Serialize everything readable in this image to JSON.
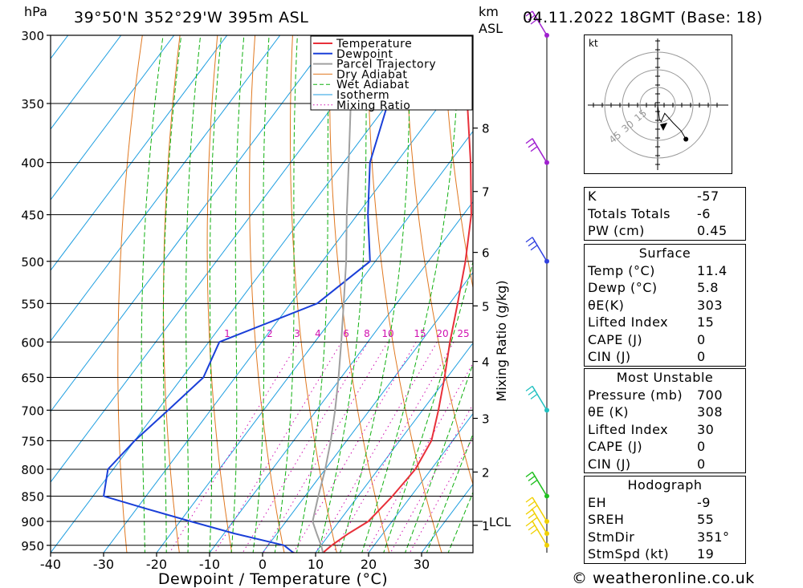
{
  "header": {
    "location": "39°50'N  352°29'W  395m  ASL",
    "datetime": "04.11.2022  18GMT  (Base: 18)",
    "hpa_label": "hPa",
    "km_label": "km",
    "asl_label": "ASL"
  },
  "legend": [
    "Temperature",
    "Dewpoint",
    "Parcel Trajectory",
    "Dry Adiabat",
    "Wet Adiabat",
    "Isotherm",
    "Mixing Ratio"
  ],
  "colors": {
    "temperature": "#e8303a",
    "dewpoint": "#1a3fd8",
    "parcel": "#a0a0a0",
    "dry_adiabat": "#e07820",
    "wet_adiabat": "#10b010",
    "isotherm": "#1e9ee0",
    "mixing_ratio": "#d010b0"
  },
  "chart_data": {
    "type": "skew-t log-p",
    "xlabel": "Dewpoint / Temperature (°C)",
    "ylabel_left": "hPa",
    "ylabel_right": "Mixing Ratio (g/kg)",
    "pressure_ticks": [
      300,
      350,
      400,
      450,
      500,
      550,
      600,
      650,
      700,
      750,
      800,
      850,
      900,
      950
    ],
    "temp_ticks": [
      -40,
      -30,
      -20,
      -10,
      0,
      10,
      20,
      30
    ],
    "km_ticks": [
      {
        "label": "8",
        "p": 370
      },
      {
        "label": "7",
        "p": 427
      },
      {
        "label": "6",
        "p": 490
      },
      {
        "label": "5",
        "p": 553
      },
      {
        "label": "4",
        "p": 627
      },
      {
        "label": "3",
        "p": 713
      },
      {
        "label": "2",
        "p": 805
      },
      {
        "label": "1",
        "p": 908
      }
    ],
    "lcl_label": "LCL",
    "lcl_p": 900,
    "mixing_ratio_labels": [
      "1",
      "2",
      "3",
      "4",
      "6",
      "8",
      "10",
      "15",
      "20",
      "25"
    ],
    "series": [
      {
        "name": "Temperature",
        "points": [
          [
            966,
            11.4
          ],
          [
            950,
            12
          ],
          [
            925,
            13.5
          ],
          [
            900,
            15.5
          ],
          [
            875,
            16
          ],
          [
            850,
            16.5
          ],
          [
            800,
            17
          ],
          [
            750,
            16
          ],
          [
            700,
            13
          ],
          [
            650,
            9.5
          ],
          [
            600,
            5.5
          ],
          [
            550,
            1.5
          ],
          [
            500,
            -3
          ],
          [
            450,
            -8.5
          ],
          [
            400,
            -16
          ],
          [
            350,
            -25
          ],
          [
            300,
            -34
          ]
        ]
      },
      {
        "name": "Dewpoint",
        "points": [
          [
            966,
            5.8
          ],
          [
            950,
            3
          ],
          [
            925,
            -8
          ],
          [
            900,
            -18
          ],
          [
            875,
            -28
          ],
          [
            850,
            -38
          ],
          [
            800,
            -41
          ],
          [
            750,
            -40
          ],
          [
            700,
            -38
          ],
          [
            650,
            -36
          ],
          [
            600,
            -38
          ],
          [
            550,
            -25
          ],
          [
            500,
            -21
          ],
          [
            450,
            -28
          ],
          [
            400,
            -35
          ],
          [
            350,
            -40
          ],
          [
            300,
            -50
          ]
        ]
      },
      {
        "name": "Parcel Trajectory",
        "points": [
          [
            966,
            11.4
          ],
          [
            950,
            10
          ],
          [
            925,
            7.5
          ],
          [
            900,
            5
          ],
          [
            850,
            2.5
          ],
          [
            800,
            0
          ],
          [
            750,
            -3
          ],
          [
            700,
            -6.5
          ],
          [
            650,
            -10.5
          ],
          [
            600,
            -15
          ],
          [
            550,
            -20
          ],
          [
            500,
            -25.5
          ],
          [
            450,
            -32
          ],
          [
            400,
            -39
          ],
          [
            350,
            -47
          ],
          [
            300,
            -56
          ]
        ]
      }
    ]
  },
  "wind_barbs": [
    {
      "p": 950,
      "color": "#f0d000"
    },
    {
      "p": 925,
      "color": "#f0d000"
    },
    {
      "p": 900,
      "color": "#f0d000"
    },
    {
      "p": 850,
      "color": "#20c020"
    },
    {
      "p": 700,
      "color": "#20c0c0"
    },
    {
      "p": 500,
      "color": "#3040e0"
    },
    {
      "p": 400,
      "color": "#a020d0"
    },
    {
      "p": 300,
      "color": "#a020d0"
    }
  ],
  "hodograph": {
    "unit": "kt",
    "ring_labels": [
      "15",
      "30",
      "45"
    ],
    "path": [
      [
        0,
        0
      ],
      [
        1.5,
        12
      ],
      [
        3,
        14
      ],
      [
        6,
        7
      ],
      [
        13,
        15
      ],
      [
        20,
        22
      ],
      [
        24,
        29
      ]
    ]
  },
  "indices": [
    {
      "label": "K",
      "value": "-57"
    },
    {
      "label": "Totals Totals",
      "value": "-6"
    },
    {
      "label": "PW (cm)",
      "value": "0.45"
    }
  ],
  "surface": {
    "title": "Surface",
    "rows": [
      {
        "label": "Temp (°C)",
        "value": "11.4"
      },
      {
        "label": "Dewp (°C)",
        "value": "5.8"
      },
      {
        "label": "θE(K)",
        "value": "303"
      },
      {
        "label": "Lifted Index",
        "value": "15"
      },
      {
        "label": "CAPE (J)",
        "value": "0"
      },
      {
        "label": "CIN (J)",
        "value": "0"
      }
    ]
  },
  "most_unstable": {
    "title": "Most Unstable",
    "rows": [
      {
        "label": "Pressure (mb)",
        "value": "700"
      },
      {
        "label": "θE (K)",
        "value": "308"
      },
      {
        "label": "Lifted Index",
        "value": "30"
      },
      {
        "label": "CAPE (J)",
        "value": "0"
      },
      {
        "label": "CIN (J)",
        "value": "0"
      }
    ]
  },
  "hodograph_table": {
    "title": "Hodograph",
    "rows": [
      {
        "label": "EH",
        "value": "-9"
      },
      {
        "label": "SREH",
        "value": "55"
      },
      {
        "label": "StmDir",
        "value": "351°"
      },
      {
        "label": "StmSpd (kt)",
        "value": "19"
      }
    ]
  },
  "credit": "© weatheronline.co.uk"
}
